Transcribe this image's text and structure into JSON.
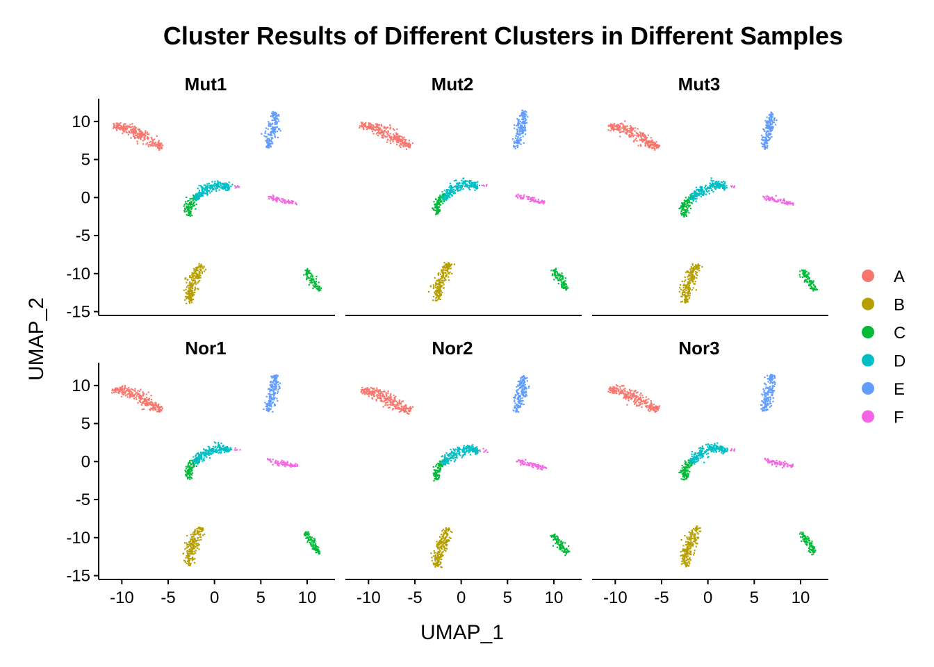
{
  "chart_data": {
    "type": "scatter",
    "title": "Cluster Results of Different Clusters in Different Samples",
    "xlabel": "UMAP_1",
    "ylabel": "UMAP_2",
    "xlim": [
      -12.5,
      13
    ],
    "ylim": [
      -15.5,
      13
    ],
    "x_ticks": [
      -10,
      -5,
      0,
      5,
      10
    ],
    "x_tick_labels": [
      "-10",
      "-5",
      "0",
      "5",
      "10"
    ],
    "y_ticks": [
      10,
      5,
      0,
      -5,
      -10,
      -15
    ],
    "y_tick_labels": [
      "10",
      "5",
      "0",
      "-5",
      "-10",
      "-15"
    ],
    "grid": false,
    "legend_position": "right",
    "legend": [
      {
        "label": "A",
        "color": "#F8766D"
      },
      {
        "label": "B",
        "color": "#B79F00"
      },
      {
        "label": "C",
        "color": "#00BA38"
      },
      {
        "label": "D",
        "color": "#00BFC4"
      },
      {
        "label": "E",
        "color": "#619CFF"
      },
      {
        "label": "F",
        "color": "#F564E3"
      }
    ],
    "facets": [
      {
        "label": "Mut1",
        "row": 0,
        "col": 0
      },
      {
        "label": "Mut2",
        "row": 0,
        "col": 1
      },
      {
        "label": "Mut3",
        "row": 0,
        "col": 2
      },
      {
        "label": "Nor1",
        "row": 1,
        "col": 0
      },
      {
        "label": "Nor2",
        "row": 1,
        "col": 1
      },
      {
        "label": "Nor3",
        "row": 1,
        "col": 2
      }
    ],
    "clusters": [
      {
        "name": "A",
        "shape": "arc",
        "points": [
          [
            -10.8,
            9.3
          ],
          [
            -9.5,
            9.2
          ],
          [
            -8,
            8.3
          ],
          [
            -6.5,
            7.2
          ],
          [
            -5.5,
            6.6
          ]
        ],
        "width": 0.9,
        "n": 260
      },
      {
        "name": "E",
        "shape": "arc",
        "points": [
          [
            5.9,
            6.5
          ],
          [
            6.4,
            8.5
          ],
          [
            6.6,
            10
          ],
          [
            6.7,
            11.2
          ]
        ],
        "width": 0.7,
        "n": 170
      },
      {
        "name": "C",
        "shape": "arc",
        "points": [
          [
            -2.6,
            -2.4
          ],
          [
            -2.7,
            -1.3
          ],
          [
            -2.3,
            -0.4
          ],
          [
            -1.7,
            0.2
          ]
        ],
        "width": 0.55,
        "n": 110
      },
      {
        "name": "D",
        "shape": "arc",
        "points": [
          [
            -2.0,
            -0.3
          ],
          [
            -1.1,
            0.8
          ],
          [
            0,
            1.5
          ],
          [
            1.2,
            1.7
          ],
          [
            1.8,
            1.2
          ]
        ],
        "width": 0.75,
        "n": 230
      },
      {
        "name": "F",
        "shape": "arc",
        "points": [
          [
            2.2,
            1.5
          ],
          [
            2.8,
            1.4
          ]
        ],
        "width": 0.2,
        "n": 6
      },
      {
        "name": "F",
        "shape": "arc",
        "points": [
          [
            5.9,
            0.1
          ],
          [
            7.2,
            -0.3
          ],
          [
            8.3,
            -0.6
          ],
          [
            9.1,
            -0.8
          ]
        ],
        "width": 0.35,
        "n": 75
      },
      {
        "name": "B",
        "shape": "arc",
        "points": [
          [
            -2.5,
            -13.8
          ],
          [
            -2.6,
            -12.3
          ],
          [
            -2.0,
            -10.5
          ],
          [
            -1.3,
            -8.8
          ]
        ],
        "width": 0.8,
        "n": 210
      },
      {
        "name": "C",
        "shape": "arc",
        "points": [
          [
            10.0,
            -9.5
          ],
          [
            10.5,
            -10.6
          ],
          [
            11.1,
            -11.6
          ],
          [
            11.4,
            -12.2
          ]
        ],
        "width": 0.55,
        "n": 95
      }
    ]
  }
}
